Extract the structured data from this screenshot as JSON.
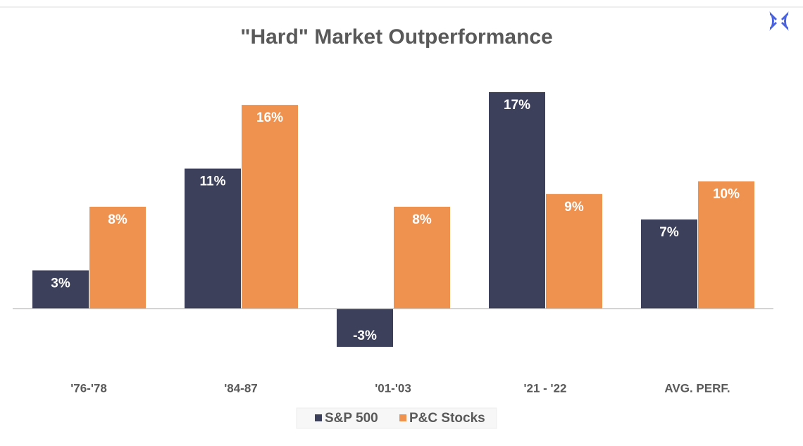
{
  "chart_data": {
    "type": "bar",
    "title": "\"Hard\" Market Outperformance",
    "categories": [
      "'76-'78",
      "'84-87",
      "'01-'03",
      "'21 - '22",
      "AVG. PERF."
    ],
    "series": [
      {
        "name": "S&P 500",
        "color": "#3d405b",
        "values": [
          3,
          11,
          -3,
          17,
          7
        ],
        "value_labels": [
          "3%",
          "11%",
          "-3%",
          "17%",
          "7%"
        ]
      },
      {
        "name": "P&C Stocks",
        "color": "#f0924f",
        "values": [
          8,
          16,
          8,
          9,
          10
        ],
        "value_labels": [
          "8%",
          "16%",
          "8%",
          "9%",
          "10%"
        ]
      }
    ],
    "grid": false,
    "legend": "bottom"
  }
}
